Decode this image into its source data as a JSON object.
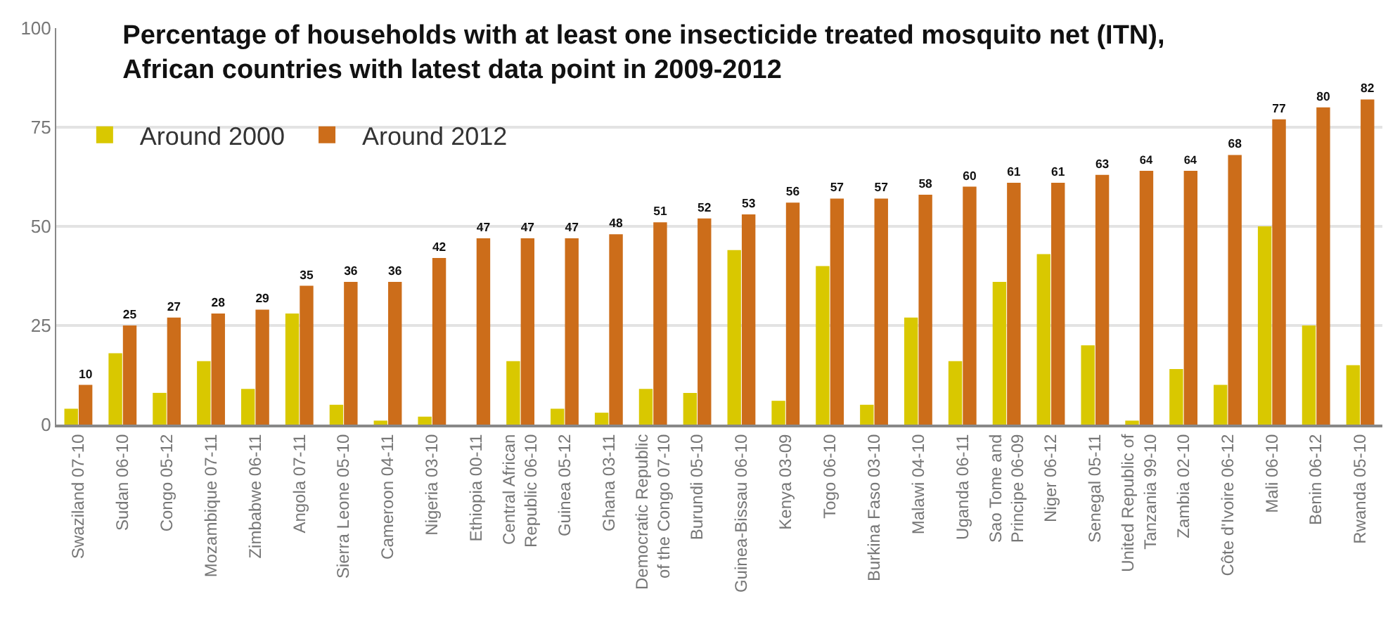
{
  "chart_data": {
    "type": "bar",
    "title": "Percentage of households with at least one insecticide treated mosquito net (ITN),\nAfrican countries with latest data point in 2009-2012",
    "categories": [
      "Swaziland 07-10",
      "Sudan 06-10",
      "Congo 05-12",
      "Mozambique 07-11",
      "Zimbabwe 06-11",
      "Angola 07-11",
      "Sierra Leone 05-10",
      "Cameroon 04-11",
      "Nigeria 03-10",
      "Ethiopia 00-11",
      "Central African\nRepublic 06-10",
      "Guinea 05-12",
      "Ghana 03-11",
      "Democratic Republic\nof the Congo 07-10",
      "Burundi 05-10",
      "Guinea-Bissau 06-10",
      "Kenya 03-09",
      "Togo 06-10",
      "Burkina Faso 03-10",
      "Malawi 04-10",
      "Uganda 06-11",
      "Sao Tome and\nPrincipe 06-09",
      "Niger 06-12",
      "Senegal 05-11",
      "United Republic of\nTanzania 99-10",
      "Zambia 02-10",
      "Côte d'Ivoire 06-12",
      "Mali 06-10",
      "Benin 06-12",
      "Rwanda 05-10"
    ],
    "series": [
      {
        "name": "Around 2000",
        "color": "#d9c800",
        "values": [
          4,
          18,
          8,
          16,
          9,
          28,
          5,
          1,
          2,
          0,
          16,
          4,
          3,
          9,
          8,
          44,
          6,
          40,
          5,
          27,
          16,
          36,
          43,
          20,
          1,
          14,
          10,
          50,
          25,
          15
        ]
      },
      {
        "name": "Around 2012",
        "color": "#cc6d1a",
        "values": [
          10,
          25,
          27,
          28,
          29,
          35,
          36,
          36,
          42,
          47,
          47,
          47,
          48,
          51,
          52,
          53,
          56,
          57,
          57,
          58,
          60,
          61,
          61,
          63,
          64,
          64,
          68,
          77,
          80,
          82
        ],
        "value_labels": [
          "10",
          "25",
          "27",
          "28",
          "29",
          "35",
          "36",
          "36",
          "42",
          "47",
          "47",
          "47",
          "48",
          "51",
          "52",
          "53",
          "56",
          "57",
          "57",
          "58",
          "60",
          "61",
          "61",
          "63",
          "64",
          "64",
          "68",
          "77",
          "80",
          "82"
        ]
      }
    ],
    "ylim": [
      0,
      100
    ],
    "yticks": [
      0,
      25,
      50,
      75,
      100
    ],
    "grid": "y",
    "legend": "top left"
  }
}
